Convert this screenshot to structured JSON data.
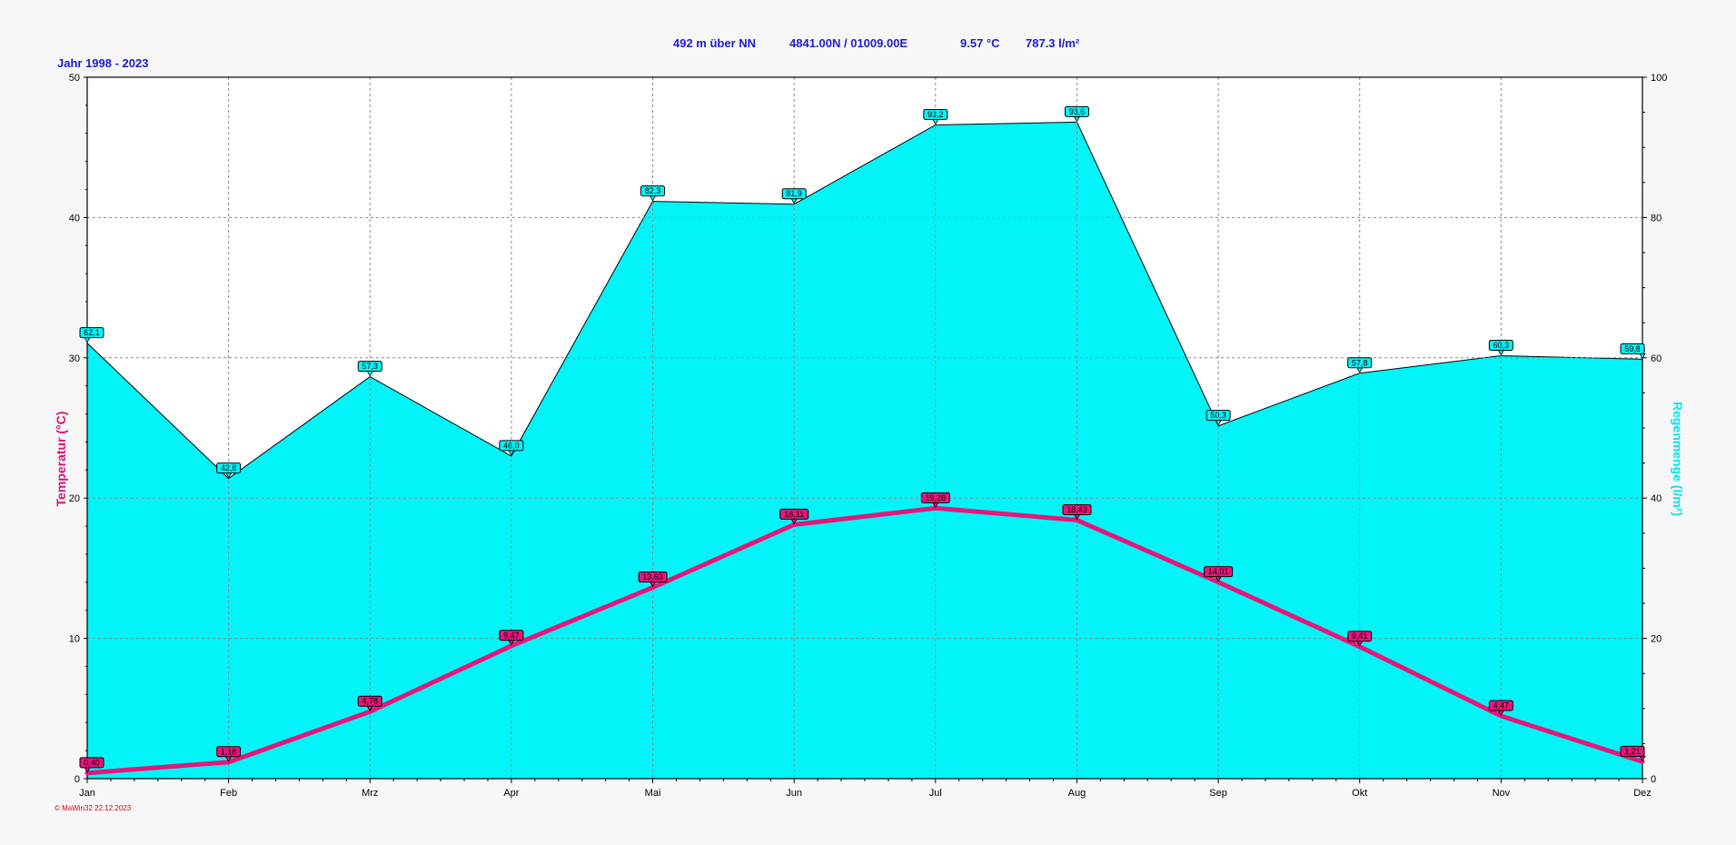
{
  "header": {
    "period": "Jahr  1998 - 2023",
    "altitude": "492 m über NN",
    "coords": "4841.00N / 01009.00E",
    "mean_temp": "9.57 °C",
    "annual_precip": "787.3 l/m²"
  },
  "footer": {
    "credit": "© MaWin32  22.12.2023"
  },
  "colors": {
    "temperature": "#e8157a",
    "precipitation_fill": "#00f5f8",
    "header_text": "#1c1cd0"
  },
  "chart_data": {
    "type": "area",
    "categories": [
      "Jan",
      "Feb",
      "Mrz",
      "Apr",
      "Mai",
      "Jun",
      "Jul",
      "Aug",
      "Sep",
      "Okt",
      "Nov",
      "Dez"
    ],
    "y_left": {
      "label": "Temperatur  (°C)",
      "min": 0,
      "max": 50,
      "ticks": [
        "0",
        "10",
        "20",
        "30",
        "40",
        "50"
      ]
    },
    "y_right": {
      "label": "Regenmenge  (l/m²)",
      "min": 0,
      "max": 100,
      "ticks": [
        "0",
        "20",
        "40",
        "60",
        "80",
        "100"
      ]
    },
    "grid": true,
    "series": [
      {
        "type": "area",
        "axis": "right",
        "values": [
          62.1,
          42.8,
          57.3,
          46.0,
          82.3,
          81.9,
          93.2,
          93.6,
          50.3,
          57.8,
          60.3,
          59.8
        ],
        "labels": [
          "62,1",
          "42,8",
          "57,3",
          "46,0",
          "82,3",
          "81,9",
          "93,2",
          "93,6",
          "50,3",
          "57,8",
          "60,3",
          "59,8"
        ]
      },
      {
        "type": "line",
        "axis": "left",
        "values": [
          0.4,
          1.18,
          4.78,
          9.47,
          13.63,
          18.11,
          19.28,
          18.43,
          14.01,
          9.41,
          4.47,
          1.21
        ],
        "labels": [
          "0,40",
          "1,18",
          "4,78",
          "9,47",
          "13,63",
          "18,11",
          "19,28",
          "18,43",
          "14,01",
          "9,41",
          "4,47",
          "1,21"
        ]
      }
    ]
  }
}
